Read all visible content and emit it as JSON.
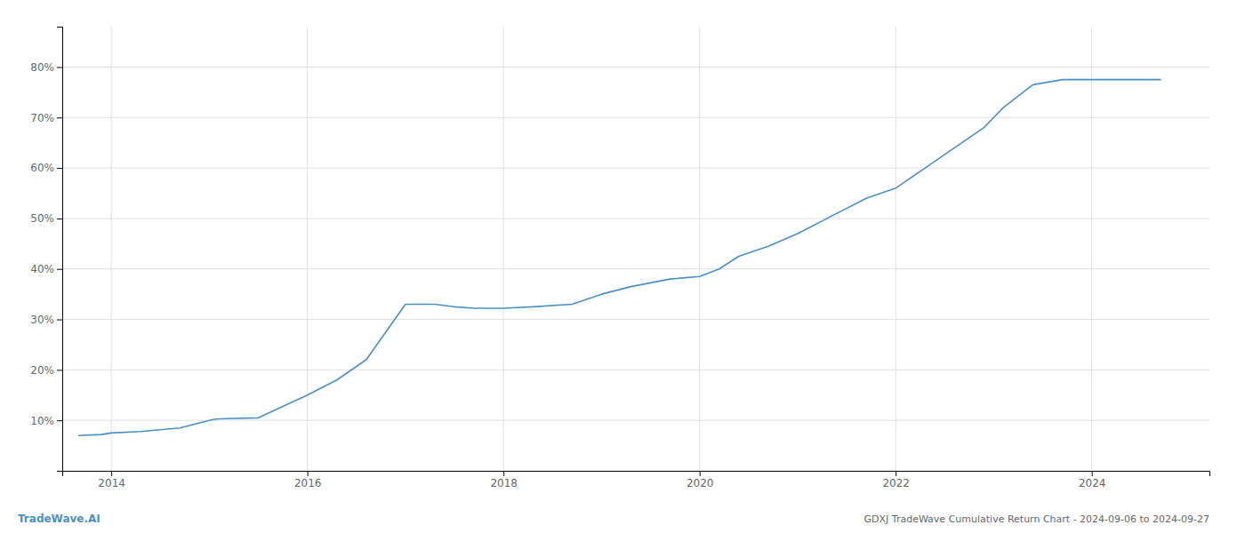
{
  "chart_data": {
    "type": "line",
    "title": "GDXJ TradeWave Cumulative Return Chart - 2024-09-06 to 2024-09-27",
    "annotations": [
      "TradeWave.AI"
    ],
    "x": [
      2013.67,
      2013.9,
      2014.0,
      2014.3,
      2014.7,
      2015.0,
      2015.05,
      2015.1,
      2015.5,
      2016.0,
      2016.3,
      2016.6,
      2017.0,
      2017.3,
      2017.5,
      2017.7,
      2018.0,
      2018.3,
      2018.7,
      2019.0,
      2019.3,
      2019.7,
      2020.0,
      2020.2,
      2020.4,
      2020.7,
      2021.0,
      2021.3,
      2021.7,
      2022.0,
      2022.3,
      2022.6,
      2022.9,
      2023.0,
      2023.1,
      2023.4,
      2023.7,
      2024.0,
      2024.3,
      2024.7
    ],
    "values": [
      7.0,
      7.2,
      7.5,
      7.8,
      8.5,
      10.0,
      10.2,
      10.3,
      10.5,
      15.0,
      18.0,
      22.0,
      33.0,
      33.0,
      32.5,
      32.2,
      32.2,
      32.5,
      33.0,
      35.0,
      36.5,
      38.0,
      38.5,
      40.0,
      42.5,
      44.5,
      47.0,
      50.0,
      54.0,
      56.0,
      60.0,
      64.0,
      68.0,
      70.0,
      72.0,
      76.5,
      77.5,
      77.5,
      77.5,
      77.5
    ],
    "color": "#4a90c4",
    "xlim": [
      2013.5,
      2025.2
    ],
    "ylim": [
      0,
      88
    ],
    "xticks": [
      2014,
      2016,
      2018,
      2020,
      2022,
      2024
    ],
    "yticks": [
      {
        "value": 10,
        "label": "10%"
      },
      {
        "value": 20,
        "label": "20%"
      },
      {
        "value": 30,
        "label": "30%"
      },
      {
        "value": 40,
        "label": "40%"
      },
      {
        "value": 50,
        "label": "50%"
      },
      {
        "value": 60,
        "label": "60%"
      },
      {
        "value": 70,
        "label": "70%"
      },
      {
        "value": 80,
        "label": "80%"
      }
    ],
    "grid": true
  }
}
